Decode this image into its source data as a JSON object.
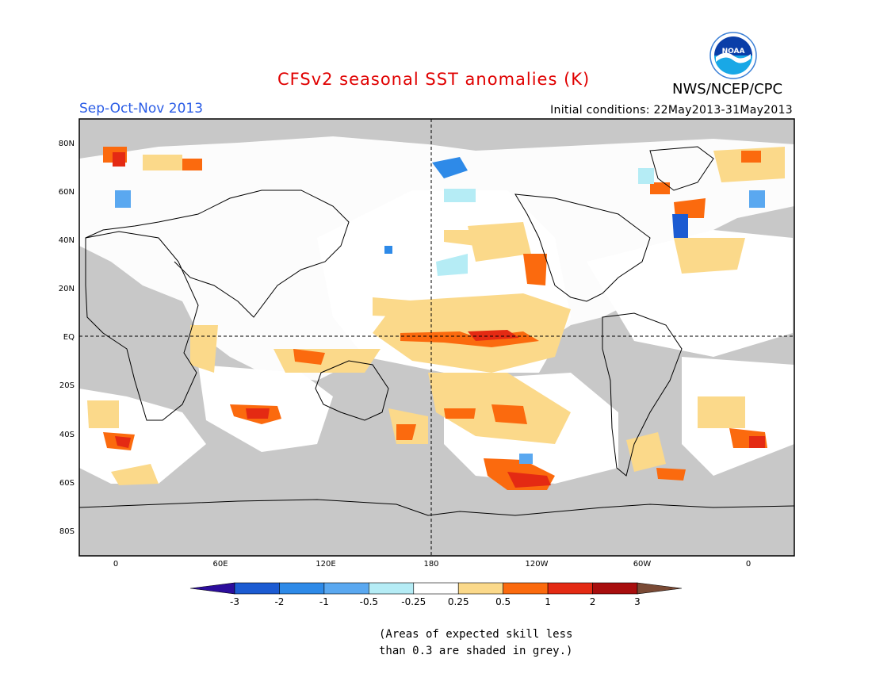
{
  "header": {
    "title": "CFSv2 seasonal SST anomalies (K)",
    "agency": "NWS/NCEP/CPC",
    "season": "Sep-Oct-Nov 2013",
    "initial_conditions": "Initial conditions: 22May2013-31May2013",
    "logo_text": "NOAA"
  },
  "map": {
    "lat_labels": [
      "80N",
      "60N",
      "40N",
      "20N",
      "EQ",
      "20S",
      "40S",
      "60S",
      "80S"
    ],
    "lon_labels": [
      "0",
      "60E",
      "120E",
      "180",
      "120W",
      "60W",
      "0"
    ]
  },
  "colorbar": {
    "unit": "K",
    "labels": [
      "-3",
      "-2",
      "-1",
      "-0.5",
      "-0.25",
      "0.25",
      "0.5",
      "1",
      "2",
      "3"
    ],
    "colors": [
      "#2c0d9c",
      "#1c5bd2",
      "#2e8ae8",
      "#5aa8f0",
      "#b5ecf5",
      "#ffffff",
      "#fbd98a",
      "#fb6a0e",
      "#e42a13",
      "#a80e0e",
      "#7a4a35"
    ]
  },
  "note": {
    "line1": "(Areas of expected skill less",
    "line2": "than 0.3 are shaded in grey.)"
  },
  "colors": {
    "grey_low_skill": "#c8c8c8",
    "title": "#e00000",
    "season": "#2a5ce6"
  }
}
